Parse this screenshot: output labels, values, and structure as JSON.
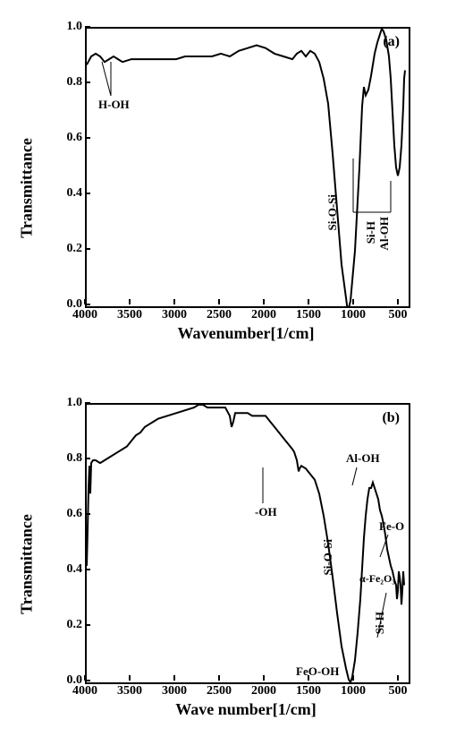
{
  "background_color": "#ffffff",
  "line_color": "#000000",
  "axis_color": "#000000",
  "panel_a": {
    "letter": "(a)",
    "ylabel": "Transmittance",
    "xlabel": "Wavenumber[1/cm]",
    "xlim": [
      4000,
      400
    ],
    "ylim": [
      0.0,
      1.0
    ],
    "xticks": [
      4000,
      3500,
      3000,
      2500,
      2000,
      1500,
      1000,
      500
    ],
    "yticks": [
      "0.0",
      "0.2",
      "0.4",
      "0.6",
      "0.8",
      "1.0"
    ],
    "label_fontsize": 18,
    "tick_fontsize": 14,
    "line_width": 2,
    "spectrum": [
      [
        4000,
        0.87
      ],
      [
        3950,
        0.9
      ],
      [
        3900,
        0.91
      ],
      [
        3850,
        0.9
      ],
      [
        3800,
        0.88
      ],
      [
        3750,
        0.89
      ],
      [
        3700,
        0.9
      ],
      [
        3650,
        0.89
      ],
      [
        3600,
        0.88
      ],
      [
        3500,
        0.89
      ],
      [
        3400,
        0.89
      ],
      [
        3300,
        0.89
      ],
      [
        3200,
        0.89
      ],
      [
        3100,
        0.89
      ],
      [
        3000,
        0.89
      ],
      [
        2900,
        0.9
      ],
      [
        2800,
        0.9
      ],
      [
        2700,
        0.9
      ],
      [
        2600,
        0.9
      ],
      [
        2500,
        0.91
      ],
      [
        2400,
        0.9
      ],
      [
        2300,
        0.92
      ],
      [
        2200,
        0.93
      ],
      [
        2100,
        0.94
      ],
      [
        2000,
        0.93
      ],
      [
        1900,
        0.91
      ],
      [
        1800,
        0.9
      ],
      [
        1700,
        0.89
      ],
      [
        1650,
        0.91
      ],
      [
        1600,
        0.92
      ],
      [
        1550,
        0.9
      ],
      [
        1500,
        0.92
      ],
      [
        1450,
        0.91
      ],
      [
        1400,
        0.88
      ],
      [
        1350,
        0.82
      ],
      [
        1300,
        0.73
      ],
      [
        1250,
        0.55
      ],
      [
        1200,
        0.35
      ],
      [
        1150,
        0.15
      ],
      [
        1100,
        0.03
      ],
      [
        1080,
        -0.02
      ],
      [
        1050,
        0.02
      ],
      [
        1000,
        0.2
      ],
      [
        950,
        0.5
      ],
      [
        920,
        0.72
      ],
      [
        900,
        0.79
      ],
      [
        880,
        0.76
      ],
      [
        850,
        0.78
      ],
      [
        820,
        0.83
      ],
      [
        800,
        0.87
      ],
      [
        780,
        0.91
      ],
      [
        750,
        0.95
      ],
      [
        720,
        0.98
      ],
      [
        700,
        1.0
      ],
      [
        680,
        0.99
      ],
      [
        650,
        0.96
      ],
      [
        620,
        0.9
      ],
      [
        600,
        0.82
      ],
      [
        580,
        0.7
      ],
      [
        560,
        0.58
      ],
      [
        540,
        0.5
      ],
      [
        520,
        0.47
      ],
      [
        500,
        0.5
      ],
      [
        480,
        0.58
      ],
      [
        460,
        0.72
      ],
      [
        450,
        0.82
      ],
      [
        440,
        0.85
      ]
    ],
    "annotations": {
      "h_oh": "H-OH",
      "si_o_si": "Si-O-Si",
      "al_oh": "Al-OH",
      "si_h": "Si-H"
    }
  },
  "panel_b": {
    "letter": "(b)",
    "ylabel": "Transmittance",
    "xlabel": "Wave number[1/cm]",
    "xlim": [
      4000,
      400
    ],
    "ylim": [
      0.0,
      1.0
    ],
    "xticks": [
      4000,
      3500,
      3000,
      2500,
      2000,
      1500,
      1000,
      500
    ],
    "yticks": [
      "0.0",
      "0.2",
      "0.4",
      "0.6",
      "0.8",
      "1.0"
    ],
    "label_fontsize": 18,
    "tick_fontsize": 14,
    "line_width": 2,
    "spectrum": [
      [
        4000,
        0.42
      ],
      [
        3990,
        0.55
      ],
      [
        3980,
        0.7
      ],
      [
        3970,
        0.78
      ],
      [
        3960,
        0.68
      ],
      [
        3950,
        0.79
      ],
      [
        3930,
        0.8
      ],
      [
        3900,
        0.8
      ],
      [
        3850,
        0.79
      ],
      [
        3800,
        0.8
      ],
      [
        3750,
        0.81
      ],
      [
        3700,
        0.82
      ],
      [
        3650,
        0.83
      ],
      [
        3600,
        0.84
      ],
      [
        3550,
        0.85
      ],
      [
        3500,
        0.87
      ],
      [
        3450,
        0.89
      ],
      [
        3400,
        0.9
      ],
      [
        3350,
        0.92
      ],
      [
        3300,
        0.93
      ],
      [
        3250,
        0.94
      ],
      [
        3200,
        0.95
      ],
      [
        3100,
        0.96
      ],
      [
        3000,
        0.97
      ],
      [
        2900,
        0.98
      ],
      [
        2800,
        0.99
      ],
      [
        2750,
        1.0
      ],
      [
        2700,
        1.0
      ],
      [
        2650,
        0.99
      ],
      [
        2600,
        0.99
      ],
      [
        2550,
        0.99
      ],
      [
        2500,
        0.99
      ],
      [
        2450,
        0.99
      ],
      [
        2400,
        0.96
      ],
      [
        2380,
        0.92
      ],
      [
        2360,
        0.94
      ],
      [
        2340,
        0.97
      ],
      [
        2300,
        0.97
      ],
      [
        2250,
        0.97
      ],
      [
        2200,
        0.97
      ],
      [
        2150,
        0.96
      ],
      [
        2100,
        0.96
      ],
      [
        2050,
        0.96
      ],
      [
        2000,
        0.96
      ],
      [
        1950,
        0.94
      ],
      [
        1900,
        0.92
      ],
      [
        1850,
        0.9
      ],
      [
        1800,
        0.88
      ],
      [
        1750,
        0.86
      ],
      [
        1700,
        0.84
      ],
      [
        1680,
        0.83
      ],
      [
        1650,
        0.8
      ],
      [
        1640,
        0.78
      ],
      [
        1630,
        0.76
      ],
      [
        1620,
        0.77
      ],
      [
        1600,
        0.78
      ],
      [
        1550,
        0.77
      ],
      [
        1500,
        0.75
      ],
      [
        1450,
        0.73
      ],
      [
        1400,
        0.68
      ],
      [
        1350,
        0.6
      ],
      [
        1300,
        0.5
      ],
      [
        1250,
        0.38
      ],
      [
        1200,
        0.25
      ],
      [
        1150,
        0.13
      ],
      [
        1100,
        0.05
      ],
      [
        1070,
        0.01
      ],
      [
        1050,
        0.0
      ],
      [
        1030,
        0.02
      ],
      [
        1000,
        0.08
      ],
      [
        970,
        0.18
      ],
      [
        940,
        0.3
      ],
      [
        920,
        0.41
      ],
      [
        900,
        0.52
      ],
      [
        880,
        0.6
      ],
      [
        860,
        0.66
      ],
      [
        840,
        0.7
      ],
      [
        820,
        0.7
      ],
      [
        800,
        0.72
      ],
      [
        780,
        0.7
      ],
      [
        760,
        0.68
      ],
      [
        740,
        0.66
      ],
      [
        720,
        0.62
      ],
      [
        700,
        0.6
      ],
      [
        680,
        0.57
      ],
      [
        660,
        0.53
      ],
      [
        640,
        0.48
      ],
      [
        620,
        0.45
      ],
      [
        600,
        0.42
      ],
      [
        580,
        0.4
      ],
      [
        560,
        0.37
      ],
      [
        540,
        0.35
      ],
      [
        530,
        0.3
      ],
      [
        520,
        0.33
      ],
      [
        510,
        0.4
      ],
      [
        500,
        0.38
      ],
      [
        490,
        0.35
      ],
      [
        480,
        0.28
      ],
      [
        470,
        0.33
      ],
      [
        460,
        0.4
      ],
      [
        450,
        0.35
      ]
    ],
    "annotations": {
      "oh": "-OH",
      "al_oh": "Al-OH",
      "si_o_si": "Si-O-Si",
      "fe_o": "Fe-O",
      "a_fe2o3": "α-Fe₂O₃",
      "feo_oh": "FeO-OH",
      "si_h": "Si-H"
    }
  }
}
